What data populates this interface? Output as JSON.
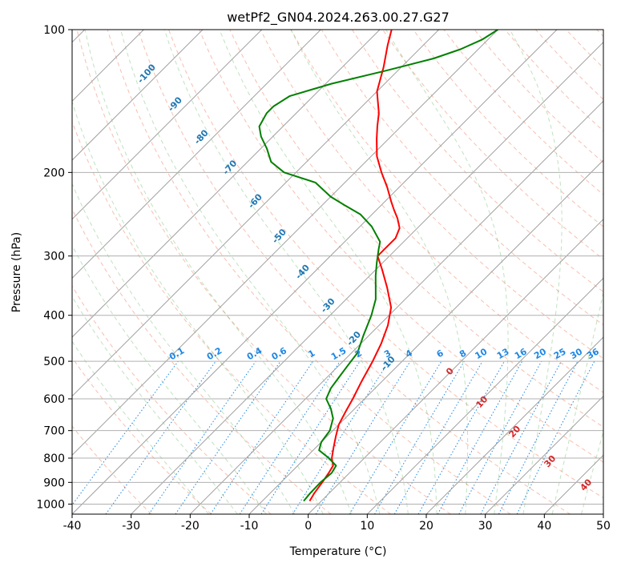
{
  "chart_data": {
    "type": "line",
    "title": "wetPf2_GN04.2024.263.00.27.G27",
    "xlabel": "Temperature (°C)",
    "ylabel": "Pressure (hPa)",
    "xlim": [
      -40,
      50
    ],
    "ylim": [
      1050,
      100
    ],
    "yscale": "log",
    "x_ticks": [
      "-40",
      "-30",
      "-20",
      "-10",
      "0",
      "10",
      "20",
      "30",
      "40",
      "50"
    ],
    "y_ticks": [
      "100",
      "200",
      "300",
      "400",
      "500",
      "600",
      "700",
      "800",
      "900",
      "1000"
    ],
    "grid": true,
    "skew": true,
    "series": [
      {
        "color": "#ff0000",
        "points": [
          [
            -2,
            985
          ],
          [
            -2.5,
            950
          ],
          [
            -3,
            900
          ],
          [
            -3.5,
            860
          ],
          [
            -4,
            830
          ],
          [
            -5.5,
            800
          ],
          [
            -7,
            760
          ],
          [
            -8.5,
            720
          ],
          [
            -10,
            680
          ],
          [
            -11,
            640
          ],
          [
            -12,
            600
          ],
          [
            -13.5,
            550
          ],
          [
            -15,
            500
          ],
          [
            -16.5,
            460
          ],
          [
            -18.5,
            420
          ],
          [
            -21,
            385
          ],
          [
            -25,
            350
          ],
          [
            -29,
            320
          ],
          [
            -32,
            300
          ],
          [
            -32,
            290
          ],
          [
            -32,
            275
          ],
          [
            -33,
            262
          ],
          [
            -35,
            250
          ],
          [
            -37,
            240
          ],
          [
            -39,
            230
          ],
          [
            -42,
            215
          ],
          [
            -45.5,
            200
          ],
          [
            -49,
            185
          ],
          [
            -52,
            170
          ],
          [
            -54,
            160
          ],
          [
            -56,
            150
          ],
          [
            -60,
            135
          ],
          [
            -63,
            120
          ],
          [
            -66,
            108
          ],
          [
            -68,
            100
          ]
        ]
      },
      {
        "color": "#008000",
        "points": [
          [
            -3,
            985
          ],
          [
            -3.2,
            950
          ],
          [
            -3.3,
            900
          ],
          [
            -3,
            860
          ],
          [
            -3.5,
            830
          ],
          [
            -6,
            800
          ],
          [
            -9,
            770
          ],
          [
            -10,
            740
          ],
          [
            -10.5,
            700
          ],
          [
            -12,
            660
          ],
          [
            -14,
            630
          ],
          [
            -16.5,
            600
          ],
          [
            -17.5,
            570
          ],
          [
            -18,
            540
          ],
          [
            -18.5,
            510
          ],
          [
            -19,
            480
          ],
          [
            -21,
            440
          ],
          [
            -23,
            400
          ],
          [
            -25,
            370
          ],
          [
            -29,
            330
          ],
          [
            -31,
            310
          ],
          [
            -33,
            290
          ],
          [
            -34,
            280
          ],
          [
            -38,
            260
          ],
          [
            -42,
            245
          ],
          [
            -46,
            235
          ],
          [
            -50,
            225
          ],
          [
            -55,
            210
          ],
          [
            -62,
            200
          ],
          [
            -66,
            190
          ],
          [
            -69,
            178
          ],
          [
            -72,
            168
          ],
          [
            -74,
            160
          ],
          [
            -75,
            150
          ],
          [
            -75,
            145
          ],
          [
            -74,
            138
          ],
          [
            -69,
            130
          ],
          [
            -62,
            122
          ],
          [
            -56,
            115
          ],
          [
            -53,
            110
          ],
          [
            -51,
            105
          ],
          [
            -50,
            100
          ]
        ]
      }
    ],
    "mixing_ratio_labels": [
      "0.1",
      "0.2",
      "0.4",
      "0.6",
      "1",
      "1.5",
      "2",
      "3",
      "4",
      "6",
      "8",
      "10",
      "13",
      "16",
      "20",
      "25",
      "30",
      "36"
    ],
    "dry_adiabat_labels": [
      "-100",
      "-90",
      "-80",
      "-70",
      "-60",
      "-50",
      "-40",
      "-30",
      "-20",
      "-10"
    ],
    "moist_adiabat_labels": [
      "0",
      "10",
      "20",
      "30",
      "40"
    ]
  }
}
